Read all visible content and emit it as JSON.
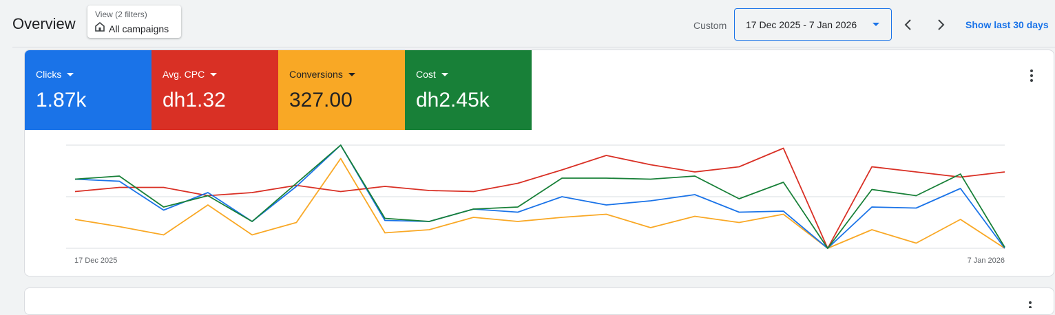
{
  "header": {
    "title": "Overview",
    "view_filter": {
      "caption": "View (2 filters)",
      "label": "All campaigns",
      "icon": "building-icon"
    },
    "date_mode_label": "Custom",
    "date_range": "17 Dec 2025 - 7 Jan 2026",
    "prev_icon": "chevron-left-icon",
    "next_icon": "chevron-right-icon",
    "show_last_label": "Show last 30 days"
  },
  "metrics": [
    {
      "name": "Clicks",
      "value": "1.87k",
      "color": "#1a73e8"
    },
    {
      "name": "Avg. CPC",
      "value": "dh1.32",
      "color": "#d93025"
    },
    {
      "name": "Conversions",
      "value": "327.00",
      "color": "#f9a825"
    },
    {
      "name": "Cost",
      "value": "dh2.45k",
      "color": "#188038"
    }
  ],
  "chart_data": {
    "type": "line",
    "x_start_label": "17 Dec 2025",
    "x_end_label": "7 Jan 2026",
    "gridlines": true,
    "ylim": [
      0,
      1
    ],
    "series": [
      {
        "color": "#1a73e8",
        "values": [
          0.67,
          0.65,
          0.37,
          0.54,
          0.26,
          0.6,
          1.0,
          0.27,
          0.26,
          0.38,
          0.35,
          0.5,
          0.42,
          0.46,
          0.52,
          0.35,
          0.36,
          0.0,
          0.4,
          0.39,
          0.58,
          0.0
        ]
      },
      {
        "color": "#d93025",
        "values": [
          0.55,
          0.59,
          0.59,
          0.51,
          0.54,
          0.61,
          0.55,
          0.6,
          0.56,
          0.55,
          0.63,
          0.76,
          0.9,
          0.81,
          0.74,
          0.79,
          0.97,
          0.0,
          0.79,
          0.74,
          0.69,
          0.74
        ]
      },
      {
        "color": "#f9a825",
        "values": [
          0.28,
          0.21,
          0.13,
          0.42,
          0.13,
          0.25,
          0.87,
          0.15,
          0.18,
          0.3,
          0.26,
          0.3,
          0.33,
          0.2,
          0.31,
          0.25,
          0.33,
          0.0,
          0.18,
          0.05,
          0.28,
          0.0
        ]
      },
      {
        "color": "#188038",
        "values": [
          0.67,
          0.7,
          0.4,
          0.51,
          0.26,
          0.63,
          1.0,
          0.29,
          0.26,
          0.38,
          0.4,
          0.68,
          0.68,
          0.67,
          0.7,
          0.48,
          0.64,
          0.0,
          0.57,
          0.51,
          0.72,
          0.01
        ]
      }
    ]
  }
}
